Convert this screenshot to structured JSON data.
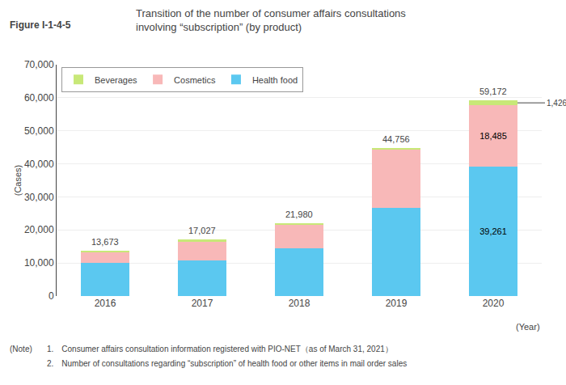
{
  "chart_data": {
    "type": "bar",
    "stacked": true,
    "title": "Transition of the number of consumer affairs consultations\ninvolving “subscription” (by product)",
    "annotations": [
      "Figure I-1-4-5",
      "(Note)",
      "1.　Consumer affairs consultation information registered with PIO-NET（as of March 31, 2021）",
      "2.　Number of consultations regarding “subscription” of health food or other items in mail order sales"
    ],
    "xlabel": "(Year)",
    "ylabel": "(Cases)",
    "categories": [
      "2016",
      "2017",
      "2018",
      "2019",
      "2020"
    ],
    "series": [
      {
        "name": "Health food",
        "color": "#5BC8F0",
        "values": [
          10073,
          10798,
          14500,
          26600,
          39261
        ],
        "value_labels": [
          null,
          null,
          null,
          null,
          "39,261"
        ]
      },
      {
        "name": "Cosmetics",
        "color": "#F8B8B8",
        "values": [
          3227,
          5800,
          7100,
          17700,
          18485
        ],
        "value_labels": [
          null,
          null,
          null,
          null,
          "18,485"
        ]
      },
      {
        "name": "Beverages",
        "color": "#C8E878",
        "values": [
          373,
          429,
          380,
          456,
          1426
        ],
        "value_labels": [
          null,
          null,
          null,
          null,
          "1,426"
        ]
      }
    ],
    "totals": [
      13673,
      17027,
      21980,
      44756,
      59172
    ],
    "total_labels": [
      "13,673",
      "17,027",
      "21,980",
      "44,756",
      "59,172"
    ],
    "ylim": [
      0,
      70000
    ],
    "yticks": [
      0,
      {
        "value": 10000,
        "label": "10,000"
      },
      {
        "value": 20000,
        "label": "20,000"
      },
      {
        "value": 30000,
        "label": "30,000"
      },
      {
        "value": 40000,
        "label": "40,000"
      },
      {
        "value": 50000,
        "label": "50,000"
      },
      {
        "value": 60000,
        "label": "60,000"
      },
      {
        "value": 70000,
        "label": "70,000"
      }
    ],
    "grid": true,
    "legend": "upper left"
  }
}
